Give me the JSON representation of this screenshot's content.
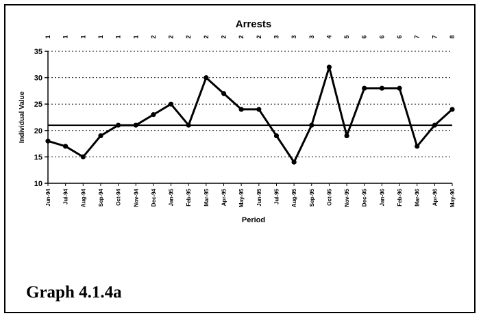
{
  "caption": "Graph 4.1.4a",
  "chart_data": {
    "type": "line",
    "title": "Arrests",
    "xlabel": "Period",
    "ylabel": "Individual Value",
    "ylim": [
      10,
      35
    ],
    "yticks": [
      10,
      15,
      20,
      25,
      30,
      35
    ],
    "grid": "horizontal dotted",
    "center_line": 21,
    "categories": [
      "Jun-94",
      "Jul-94",
      "Aug-94",
      "Sep-94",
      "Oct-94",
      "Nov-94",
      "Dec-94",
      "Jan-95",
      "Feb-95",
      "Mar-95",
      "Apr-95",
      "May-95",
      "Jun-95",
      "Jul-95",
      "Aug-95",
      "Sep-95",
      "Oct-95",
      "Nov-95",
      "Dec-95",
      "Jan-96",
      "Feb-96",
      "Mar-96",
      "Apr-96",
      "May-96"
    ],
    "top_labels": [
      "1",
      "1",
      "1",
      "1",
      "1",
      "1",
      "2",
      "2",
      "2",
      "2",
      "2",
      "2",
      "2",
      "3",
      "3",
      "3",
      "4",
      "5",
      "6",
      "6",
      "6",
      "7",
      "7",
      "8"
    ],
    "series": [
      {
        "values": [
          18,
          17,
          15,
          19,
          21,
          21,
          23,
          25,
          21,
          30,
          27,
          24,
          24,
          19,
          14,
          21,
          32,
          19,
          28,
          28,
          28,
          17,
          21,
          24
        ]
      }
    ],
    "line_color": "#000000"
  }
}
